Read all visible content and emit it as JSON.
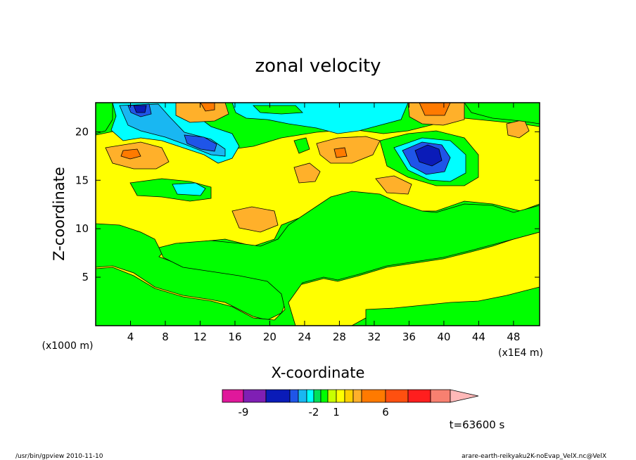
{
  "chart_data": {
    "type": "heatmap",
    "title": "zonal velocity",
    "xlabel": "X-coordinate",
    "ylabel": "Z-coordinate",
    "x_unit": "(x1E4 m)",
    "y_unit": "(x1000 m)",
    "xlim": [
      0,
      51
    ],
    "ylim": [
      0,
      23
    ],
    "x_ticks": [
      "4",
      "8",
      "12",
      "16",
      "20",
      "24",
      "28",
      "32",
      "36",
      "40",
      "44",
      "48"
    ],
    "y_ticks": [
      "5",
      "10",
      "15",
      "20"
    ],
    "grid": false,
    "colorbar": {
      "orientation": "horizontal",
      "labels": [
        {
          "text": "-9",
          "value": -9
        },
        {
          "text": "-2",
          "value": -2
        },
        {
          "text": "1",
          "value": 1
        },
        {
          "text": "6",
          "value": 6
        }
      ],
      "levels": [
        -11,
        -9,
        -7,
        -5,
        -4,
        -3,
        -2,
        -1,
        0,
        1,
        2,
        3,
        4,
        6,
        8,
        10,
        12
      ],
      "colors": [
        "#e0189b",
        "#7f1fb4",
        "#0a1bb8",
        "#1f55e8",
        "#19b7f2",
        "#00ffff",
        "#00e05a",
        "#00ff00",
        "#c8ff00",
        "#ffff00",
        "#ffd000",
        "#ffb02a",
        "#ff7a00",
        "#ff5010",
        "#ff1e1e",
        "#f88070",
        "#ffb8b8"
      ],
      "extend": "max"
    },
    "features": [
      {
        "x": 4.5,
        "z": 17.8,
        "value": 5,
        "note": "positive maximum"
      },
      {
        "x": 28.0,
        "z": 17.6,
        "value": 5,
        "note": "positive maximum"
      },
      {
        "x": 38.0,
        "z": 17.6,
        "value": -9,
        "note": "negative minimum"
      },
      {
        "x": 5.2,
        "z": 22.2,
        "value": -6,
        "note": "negative minimum"
      },
      {
        "x": 13.5,
        "z": 19.6,
        "value": -4,
        "note": "negative minimum"
      },
      {
        "x": 37.5,
        "z": 22.4,
        "value": 6,
        "note": "positive maximum"
      },
      {
        "x": 12.0,
        "z": 22.2,
        "value": 4,
        "note": "positive maximum"
      }
    ]
  },
  "annotations": {
    "time": "t=63600 s",
    "footer_left": "/usr/bin/gpview   2010-11-10",
    "footer_right": "arare-earth-reikyaku2K-noEvap_VelX.nc@VelX"
  }
}
